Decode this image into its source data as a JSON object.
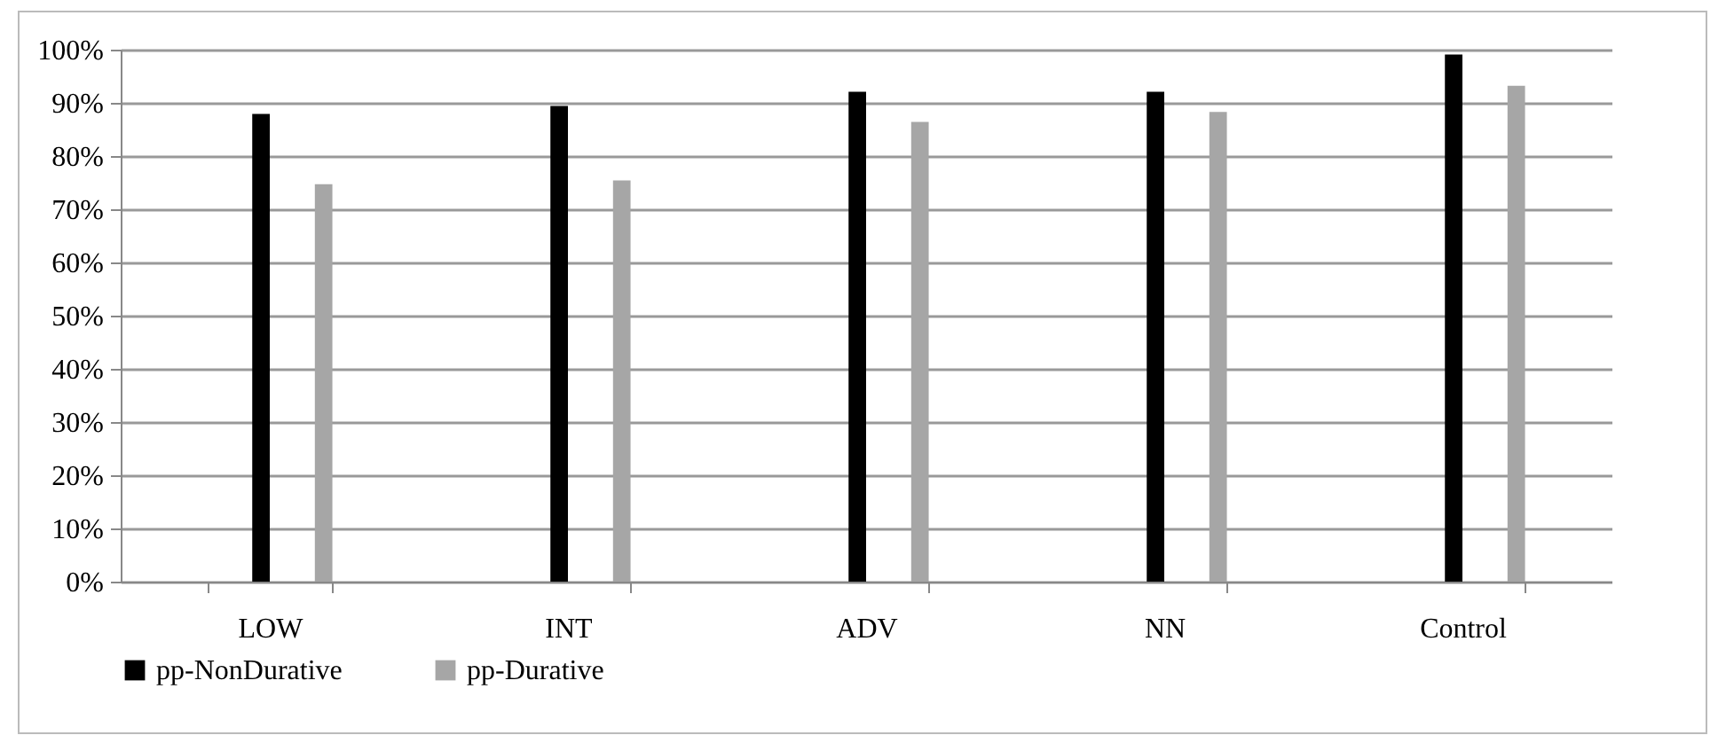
{
  "chart_data": {
    "type": "bar",
    "categories": [
      "LOW",
      "INT",
      "ADV",
      "NN",
      "Control"
    ],
    "series": [
      {
        "name": "pp-NonDurative",
        "color": "#000000",
        "values": [
          87.9,
          89.4,
          92.1,
          92.1,
          99.1
        ]
      },
      {
        "name": "pp-Durative",
        "color": "#a6a6a6",
        "values": [
          74.7,
          75.4,
          86.4,
          88.3,
          93.2
        ]
      }
    ],
    "ylim": [
      0,
      100
    ],
    "yticks": [
      {
        "value": 0,
        "label": "0%"
      },
      {
        "value": 10,
        "label": "10%"
      },
      {
        "value": 20,
        "label": "20%"
      },
      {
        "value": 30,
        "label": "30%"
      },
      {
        "value": 40,
        "label": "40%"
      },
      {
        "value": 50,
        "label": "50%"
      },
      {
        "value": 60,
        "label": "60%"
      },
      {
        "value": 70,
        "label": "70%"
      },
      {
        "value": 80,
        "label": "80%"
      },
      {
        "value": 90,
        "label": "90%"
      },
      {
        "value": 100,
        "label": "100%"
      }
    ],
    "grid": "y",
    "legend": "bottom"
  }
}
